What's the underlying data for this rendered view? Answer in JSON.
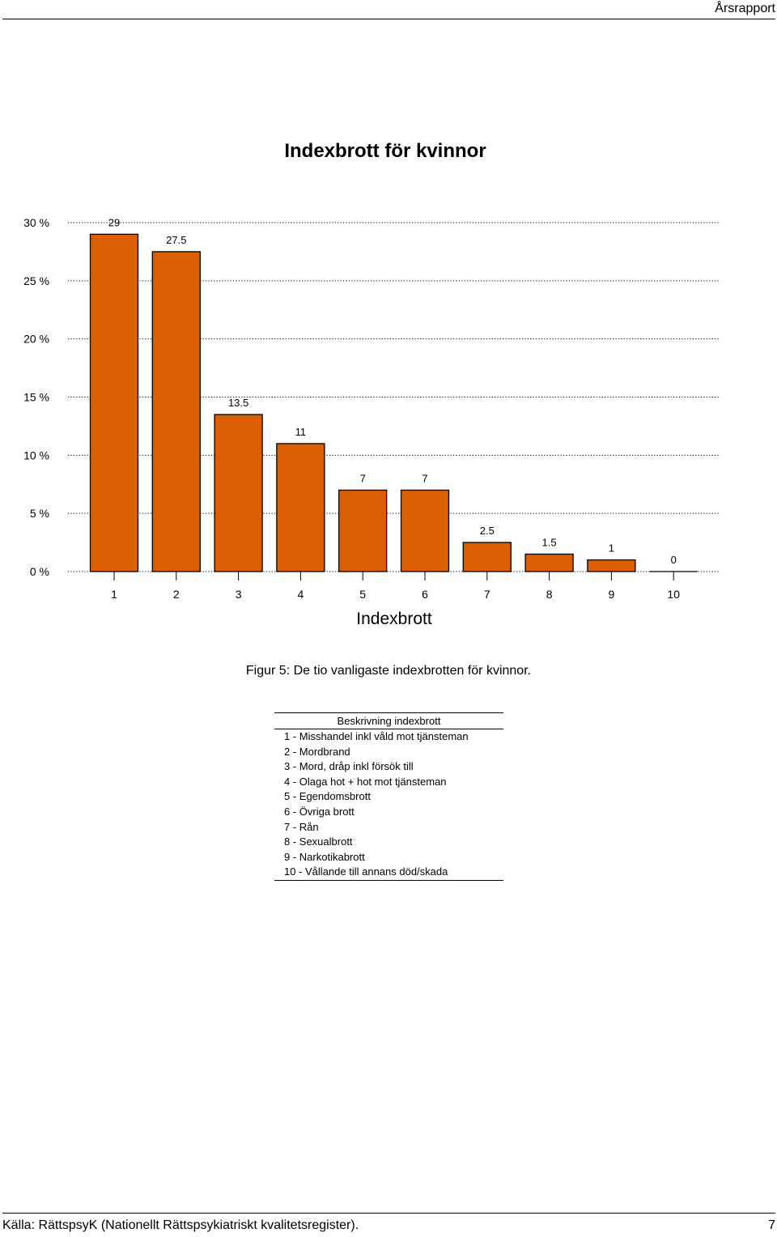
{
  "header": {
    "running_title": "Årsrapport"
  },
  "footer": {
    "source": "Källa: RättspsyK (Nationellt Rättspsykiatriskt kvalitetsregister).",
    "page": "7"
  },
  "caption": "Figur 5: De tio vanligaste indexbrotten för kvinnor.",
  "colors": {
    "bar_fill": "#D95F02",
    "bar_stroke": "#000000",
    "grid": "#000000"
  },
  "chart_data": {
    "type": "bar",
    "title": "Indexbrott för kvinnor",
    "xlabel": "Indexbrott",
    "ylabel": "",
    "categories": [
      "1",
      "2",
      "3",
      "4",
      "5",
      "6",
      "7",
      "8",
      "9",
      "10"
    ],
    "values": [
      29,
      27.5,
      13.5,
      11,
      7,
      7,
      2.5,
      1.5,
      1,
      0
    ],
    "value_labels": [
      "29",
      "27.5",
      "13.5",
      "11",
      "7",
      "7",
      "2.5",
      "1.5",
      "1",
      "0"
    ],
    "ylim": [
      0,
      30
    ],
    "yticks": [
      {
        "value": 0,
        "label": "0 %"
      },
      {
        "value": 5,
        "label": "5 %"
      },
      {
        "value": 10,
        "label": "10 %"
      },
      {
        "value": 15,
        "label": "15 %"
      },
      {
        "value": 20,
        "label": "20 %"
      },
      {
        "value": 25,
        "label": "25 %"
      },
      {
        "value": 30,
        "label": "30 %"
      }
    ],
    "grid": true,
    "legend": "none"
  },
  "legend_table": {
    "heading": "Beskrivning indexbrott",
    "rows": [
      "1 - Misshandel inkl våld mot tjänsteman",
      "2 - Mordbrand",
      "3 - Mord, dråp inkl försök till",
      "4 - Olaga hot + hot mot tjänsteman",
      "5 - Egendomsbrott",
      "6 - Övriga brott",
      "7 - Rån",
      "8 - Sexualbrott",
      "9 - Narkotikabrott",
      "10 - Vållande till annans död/skada"
    ]
  }
}
